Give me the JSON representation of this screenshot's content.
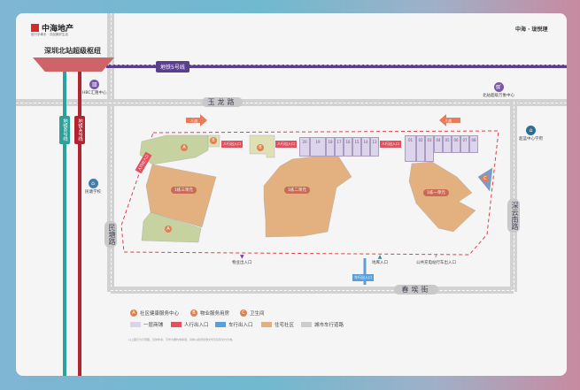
{
  "brand": {
    "logo_text": "中海地产",
    "slogan": "前行手牵手 · 共创美好生活",
    "right_logo": "中海 · 珑悦理"
  },
  "hub": {
    "title": "深圳北站超级枢纽"
  },
  "metro": {
    "line5": "地铁5号线",
    "line6": "地铁6号线",
    "line4": "地铁4号线",
    "colors": {
      "line5": "#5b3f8f",
      "line6": "#2aa19a",
      "line4": "#b02530"
    }
  },
  "roads": {
    "yulong": "玉龙路",
    "mintang": "民塘路",
    "shenyun": "深云南路",
    "chun": "春埃街"
  },
  "pois": {
    "hbc": "HBC汇隆中心",
    "mixc": "北站超级万象中心",
    "school1": "民塘学校",
    "school2": "超蓝中心学府",
    "bus": "公共充电站行车出入口",
    "garage": "地库入口",
    "parking": "物业出入口"
  },
  "flows": {
    "people1": "人流",
    "people2": "人流",
    "pedestrian1": "人行出入口",
    "pedestrian2": "人行出入口",
    "pedestrian3": "人行出入口",
    "pedestrian4": "人行出入口",
    "vehicle": "车行出入口"
  },
  "buildings": {
    "b3": "1栋三单元",
    "b2": "1栋二单元",
    "b1": "1栋一单元",
    "a": "A",
    "b": "B",
    "c": "C"
  },
  "shops_row1": [
    "20",
    "19",
    "18",
    "17",
    "16",
    "15",
    "14",
    "13"
  ],
  "shops_row2": [
    "01",
    "02",
    "03",
    "04",
    "05",
    "06",
    "07",
    "08"
  ],
  "legend": {
    "a": "社区健康服务中心",
    "b": "物业服务用房",
    "c": "卫生间",
    "shop": "一层商铺",
    "ped": "人行出入口",
    "car": "车行出入口",
    "res": "住宅社区",
    "road": "城市车行道路"
  },
  "disclaimer": "以上图示为示意图，仅供参考，不作为要约或承诺，具体以政府批准文件及实际交付为准。"
}
